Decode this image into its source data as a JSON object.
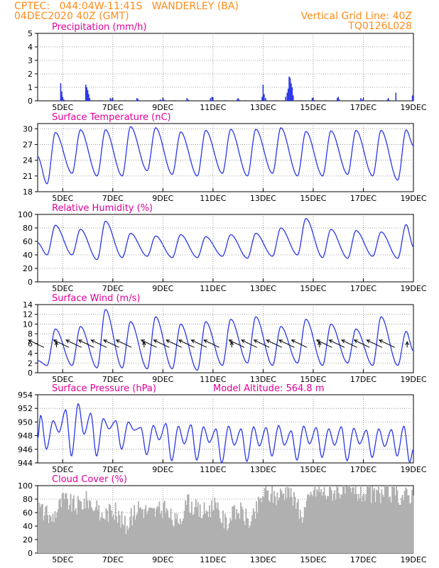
{
  "header": {
    "line1_left": "CPTEC:   044:04W-11:41S   WANDERLEY (BA)",
    "line2_left": "04DEC2020 40Z (GMT)",
    "line1_right": "Vertical Grid Line: 40Z",
    "line2_right": "TQ0126L028"
  },
  "colors": {
    "title": "#e0009a",
    "header": "#ff8c1a",
    "series": "#2a37e8",
    "cloud": "#b0b0b0",
    "wind_arrow": "#000000"
  },
  "shared_x": {
    "tick_labels": [
      "5DEC",
      "7DEC",
      "9DEC",
      "11DEC",
      "13DEC",
      "15DEC",
      "17DEC",
      "19DEC"
    ],
    "tick_days": [
      5,
      7,
      9,
      11,
      13,
      15,
      17,
      19
    ],
    "range_days": [
      4.0,
      19.0
    ]
  },
  "chart_data": [
    {
      "id": "precip",
      "type": "bar",
      "title": "Precipitation (mm/h)",
      "ylim": [
        0,
        5
      ],
      "yticks": [
        0,
        1,
        2,
        3,
        4,
        5
      ],
      "grid": true,
      "x": [
        4.92,
        4.96,
        5.0,
        5.04,
        5.08,
        5.5,
        5.92,
        5.96,
        6.0,
        6.04,
        6.08,
        6.12,
        6.5,
        6.9,
        6.96,
        7.0,
        7.5,
        7.96,
        8.0,
        8.04,
        8.9,
        9.0,
        9.04,
        9.5,
        9.96,
        10.0,
        10.04,
        10.9,
        10.96,
        11.0,
        11.5,
        11.96,
        12.0,
        12.04,
        12.3,
        12.96,
        13.0,
        13.04,
        13.1,
        13.5,
        13.9,
        13.96,
        14.0,
        14.04,
        14.08,
        14.12,
        14.16,
        14.2,
        14.5,
        14.96,
        15.0,
        15.04,
        15.5,
        15.96,
        16.0,
        16.04,
        16.9,
        16.96,
        17.0,
        17.5,
        17.96,
        18.0,
        18.04,
        18.3,
        18.96,
        19.0
      ],
      "values": [
        1.3,
        0.7,
        0.3,
        0.1,
        0.05,
        0.05,
        1.2,
        1.0,
        0.8,
        0.5,
        0.2,
        0.05,
        0.05,
        0.2,
        0.15,
        0.1,
        0.05,
        0.2,
        0.15,
        0.05,
        0.1,
        0.15,
        0.1,
        0.05,
        0.2,
        0.1,
        0.05,
        0.2,
        0.3,
        0.1,
        0.05,
        0.1,
        0.2,
        0.1,
        0.05,
        0.3,
        1.2,
        0.5,
        0.2,
        0.05,
        0.3,
        0.6,
        0.9,
        1.8,
        1.7,
        1.3,
        1.0,
        0.4,
        0.05,
        0.2,
        0.1,
        0.05,
        0.05,
        0.2,
        0.3,
        0.1,
        0.2,
        0.1,
        0.05,
        0.05,
        0.1,
        0.2,
        0.05,
        0.6,
        0.4,
        0.2
      ]
    },
    {
      "id": "temp",
      "type": "line",
      "title": "Surface Temperature (nC)",
      "ylim": [
        18,
        31
      ],
      "yticks": [
        18,
        21,
        24,
        27,
        30
      ],
      "grid": true,
      "daily_max": [
        29.3,
        29.8,
        29.8,
        30.4,
        30.2,
        29.4,
        29.7,
        29.9,
        29.9,
        30.2,
        29.5,
        29.6,
        29.7,
        29.7,
        29.8
      ],
      "daily_min": [
        19.5,
        21.5,
        21.0,
        21.0,
        22.0,
        21.3,
        21.0,
        21.5,
        21.0,
        21.5,
        21.0,
        21.0,
        21.3,
        21.0,
        20.2
      ],
      "start_value": 24.7,
      "end_value": 26.8
    },
    {
      "id": "rh",
      "type": "line",
      "title": "Relative Humidity (%)",
      "ylim": [
        0,
        100
      ],
      "yticks": [
        0,
        20,
        40,
        60,
        80,
        100
      ],
      "grid": true,
      "daily_max": [
        84,
        78,
        90,
        72,
        68,
        70,
        67,
        70,
        72,
        80,
        94,
        78,
        76,
        74,
        85
      ],
      "daily_min": [
        40,
        40,
        33,
        36,
        38,
        36,
        36,
        38,
        35,
        38,
        40,
        36,
        35,
        38,
        35
      ],
      "start_value": 58,
      "end_value": 52
    },
    {
      "id": "wind",
      "type": "line",
      "title": "Surface Wind (m/s)",
      "ylim": [
        0,
        14
      ],
      "yticks": [
        0,
        2,
        4,
        6,
        8,
        10,
        12,
        14
      ],
      "grid": true,
      "daily_max": [
        9.0,
        9.5,
        13.0,
        10.5,
        11.5,
        10.0,
        10.5,
        11.0,
        11.5,
        9.5,
        11.0,
        10.0,
        9.0,
        11.5,
        8.5
      ],
      "daily_min": [
        1.5,
        1.5,
        1.0,
        1.0,
        0.8,
        0.8,
        0.5,
        1.5,
        2.0,
        1.5,
        2.0,
        1.5,
        2.0,
        1.5,
        1.5
      ],
      "start_value": 2.5,
      "end_value": 4.5,
      "arrows_note": "wind vectors every 12h, mostly from the east-northeast"
    },
    {
      "id": "pres",
      "type": "line",
      "title": "Surface Pressure (hPa)",
      "annotation": "Model Altitude:  564.8  m",
      "ylim": [
        944,
        954
      ],
      "yticks": [
        944,
        946,
        948,
        950,
        952,
        954
      ],
      "grid": true,
      "semidiurnal_max": [
        951.0,
        950.2,
        951.8,
        952.7,
        951.3,
        950.5,
        950.2,
        950.0,
        949.2,
        949.5,
        949.8,
        949.4,
        949.6,
        949.3,
        949.0,
        949.4,
        949.0,
        949.3,
        949.2,
        949.5,
        948.7,
        949.4,
        949.2,
        949.0,
        949.3,
        949.1,
        948.8,
        949.0,
        948.9,
        949.4
      ],
      "semidiurnal_min": [
        946.0,
        948.5,
        945.0,
        948.2,
        945.0,
        949.0,
        946.0,
        948.8,
        945.2,
        947.4,
        944.3,
        946.8,
        944.4,
        947.0,
        944.0,
        946.6,
        944.2,
        946.5,
        945.0,
        946.6,
        944.4,
        946.8,
        944.8,
        946.6,
        944.3,
        946.8,
        944.8,
        946.4,
        945.0,
        944.1
      ],
      "start_value": 947.5,
      "end_value": 946.0
    },
    {
      "id": "cloud",
      "type": "area",
      "title": "Cloud Cover (%)",
      "ylim": [
        0,
        100
      ],
      "yticks": [
        0,
        20,
        40,
        60,
        80,
        100
      ],
      "grid": true,
      "profile_days": [
        4.0,
        4.5,
        5.0,
        5.5,
        6.0,
        6.5,
        7.0,
        7.5,
        8.0,
        8.5,
        9.0,
        9.5,
        10.0,
        10.5,
        11.0,
        11.5,
        12.0,
        12.5,
        13.0,
        13.5,
        14.0,
        14.5,
        15.0,
        15.5,
        16.0,
        16.5,
        17.0,
        17.5,
        18.0,
        18.5,
        19.0
      ],
      "profile_values": [
        70,
        50,
        80,
        70,
        80,
        55,
        65,
        40,
        70,
        60,
        65,
        45,
        75,
        60,
        70,
        45,
        65,
        45,
        90,
        85,
        95,
        55,
        95,
        90,
        95,
        90,
        90,
        85,
        90,
        85,
        88
      ]
    }
  ]
}
